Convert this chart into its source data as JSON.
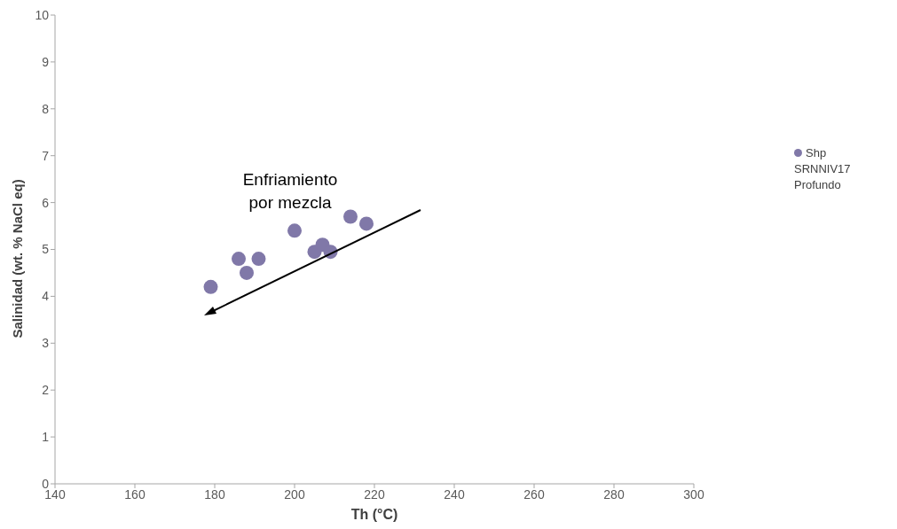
{
  "chart_data": {
    "type": "scatter",
    "xlabel": "Th (°C)",
    "ylabel": "Salinidad  (wt. % NaCl eq)",
    "x": [
      179,
      186,
      188,
      191,
      200,
      205,
      207,
      209,
      214,
      218
    ],
    "series": [
      {
        "name": "Shp SRNNIV17 Profundo",
        "color": "#8078a8",
        "values": [
          4.2,
          4.8,
          4.5,
          4.8,
          5.4,
          4.95,
          5.1,
          4.95,
          5.7,
          5.55
        ]
      }
    ],
    "xlim": [
      140,
      300
    ],
    "xticks": [
      140,
      160,
      180,
      200,
      220,
      240,
      260,
      280,
      300
    ],
    "ylim": [
      0,
      10
    ],
    "yticks": [
      0,
      1,
      2,
      3,
      4,
      5,
      6,
      7,
      8,
      9,
      10
    ],
    "annotations": [
      "Enfriamiento por mezcla"
    ],
    "legend": "right",
    "marker": "circle",
    "grid": false
  }
}
